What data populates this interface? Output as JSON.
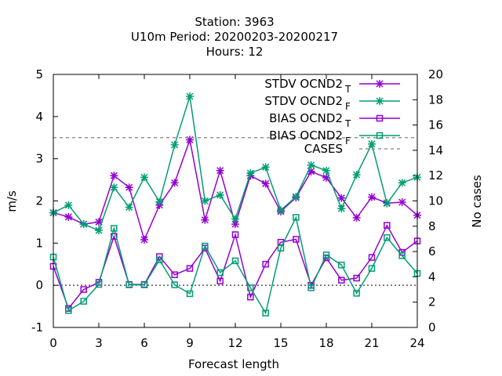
{
  "chart_data": {
    "type": "line",
    "title_lines": [
      "Station:     3963",
      "U10m   Period: 20200203-20200217",
      "Hours:  12"
    ],
    "xlabel": "Forecast length",
    "ylabel": "m/s",
    "y2label": "No cases",
    "xlim": [
      0,
      24
    ],
    "ylim": [
      -1,
      5
    ],
    "y2lim": [
      0,
      20
    ],
    "xticks": [
      0,
      3,
      6,
      9,
      12,
      15,
      18,
      21,
      24
    ],
    "yticks": [
      -1,
      0,
      1,
      2,
      3,
      4,
      5
    ],
    "y2ticks": [
      0,
      2,
      4,
      6,
      8,
      10,
      12,
      14,
      16,
      18,
      20
    ],
    "x": [
      0,
      1,
      2,
      3,
      4,
      5,
      6,
      7,
      8,
      9,
      10,
      11,
      12,
      13,
      14,
      15,
      16,
      17,
      18,
      19,
      20,
      21,
      22,
      23,
      24
    ],
    "legend_position": "top-right",
    "series": [
      {
        "name": "STDV OCND2",
        "sub": "T",
        "color": "#9400d3",
        "marker": "star",
        "axis": "y",
        "values": [
          1.72,
          1.62,
          1.45,
          1.5,
          2.6,
          2.32,
          1.08,
          1.9,
          2.43,
          3.45,
          1.55,
          2.72,
          1.45,
          2.6,
          2.41,
          1.75,
          2.08,
          2.7,
          2.55,
          2.07,
          1.6,
          2.09,
          1.95,
          1.97,
          1.66
        ]
      },
      {
        "name": "STDV OCND2",
        "sub": "F",
        "color": "#009e73",
        "marker": "star",
        "axis": "y",
        "values": [
          1.72,
          1.9,
          1.45,
          1.3,
          2.32,
          1.85,
          2.56,
          1.98,
          3.33,
          4.48,
          2.0,
          2.14,
          1.57,
          2.66,
          2.8,
          1.78,
          2.1,
          2.85,
          2.72,
          1.82,
          2.62,
          3.35,
          1.94,
          2.43,
          2.56
        ]
      },
      {
        "name": "BIAS OCND2",
        "sub": "T",
        "color": "#9400d3",
        "marker": "square",
        "axis": "y",
        "values": [
          0.45,
          -0.55,
          -0.1,
          0.07,
          1.16,
          0.02,
          0.02,
          0.68,
          0.25,
          0.4,
          0.88,
          0.1,
          1.2,
          -0.28,
          0.5,
          1.02,
          1.09,
          0.0,
          0.65,
          0.12,
          0.17,
          0.66,
          1.42,
          0.78,
          1.05
        ]
      },
      {
        "name": "BIAS OCND2",
        "sub": "F",
        "color": "#009e73",
        "marker": "square",
        "axis": "y",
        "values": [
          0.67,
          -0.6,
          -0.38,
          0.02,
          1.35,
          0.01,
          0.01,
          0.6,
          0.01,
          -0.2,
          0.93,
          0.3,
          0.58,
          -0.06,
          -0.66,
          0.88,
          1.61,
          -0.06,
          0.72,
          0.48,
          -0.19,
          0.4,
          1.13,
          0.7,
          0.28
        ]
      },
      {
        "name": "CASES",
        "sub": "",
        "color": "#808080",
        "marker": "none",
        "dashed": true,
        "axis": "y2",
        "values": [
          15,
          15,
          15,
          15,
          15,
          15,
          15,
          15,
          15,
          15,
          15,
          15,
          15,
          15,
          15,
          15,
          15,
          15,
          15,
          15,
          15,
          15,
          15,
          15,
          15
        ]
      }
    ]
  }
}
